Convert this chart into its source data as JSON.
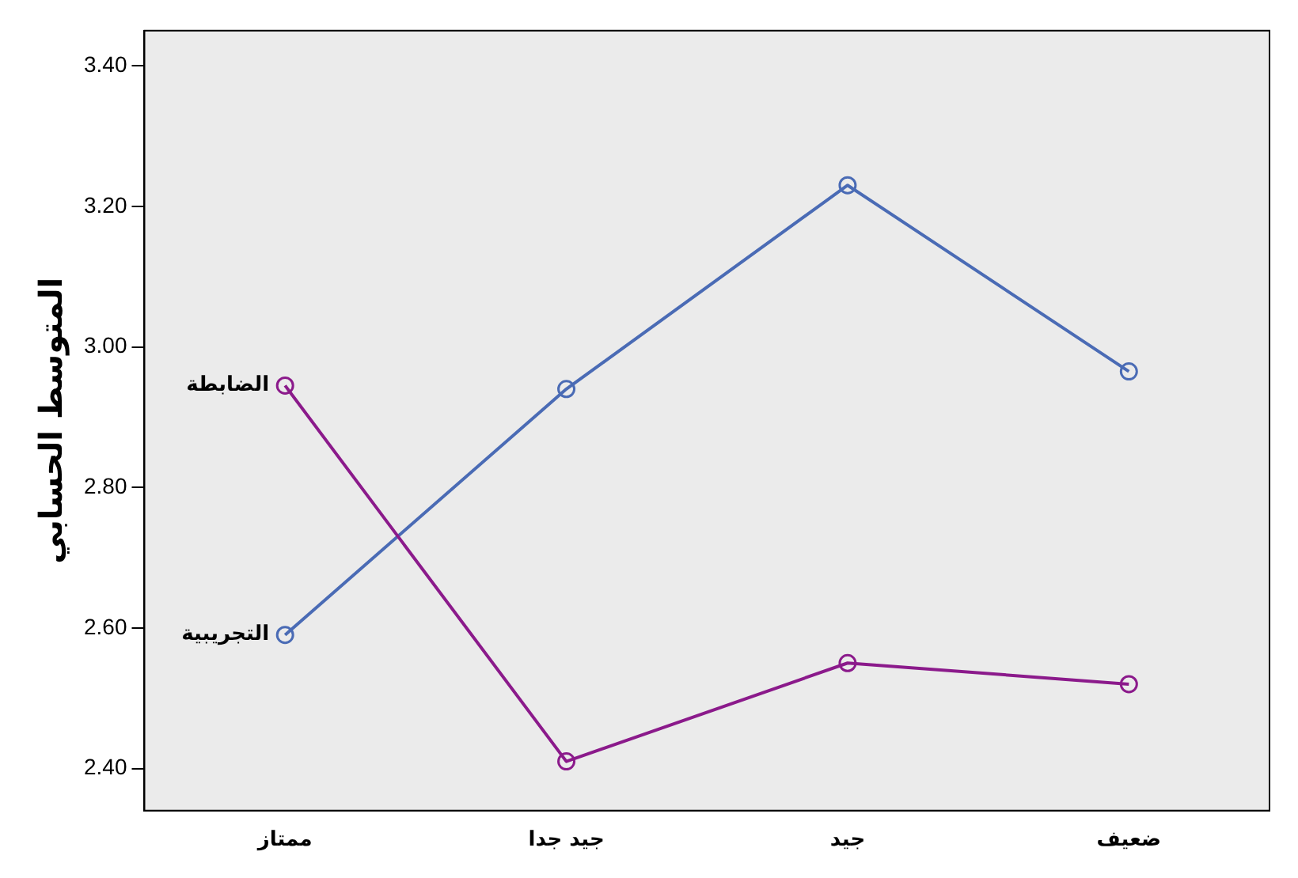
{
  "chart_data": {
    "type": "line",
    "ylabel": "المتوسط الحسابي",
    "categories": [
      "ممتاز",
      "جيد جدا",
      "جيد",
      "ضعيف"
    ],
    "series": [
      {
        "name": "الضابطة",
        "color": "#8b1a8b",
        "values": [
          2.945,
          2.41,
          2.55,
          2.52
        ]
      },
      {
        "name": "التجريبية",
        "color": "#4a6bb5",
        "values": [
          2.59,
          2.94,
          3.23,
          2.965
        ]
      }
    ],
    "ylim": [
      2.34,
      3.45
    ],
    "yticks": [
      {
        "value": 2.4,
        "label": "2.40"
      },
      {
        "value": 2.6,
        "label": "2.60"
      },
      {
        "value": 2.8,
        "label": "2.80"
      },
      {
        "value": 3.0,
        "label": "3.00"
      },
      {
        "value": 3.2,
        "label": "3.20"
      },
      {
        "value": 3.4,
        "label": "3.40"
      }
    ],
    "marker": "circle",
    "line_style": "solid",
    "grid": false,
    "legend": false
  }
}
